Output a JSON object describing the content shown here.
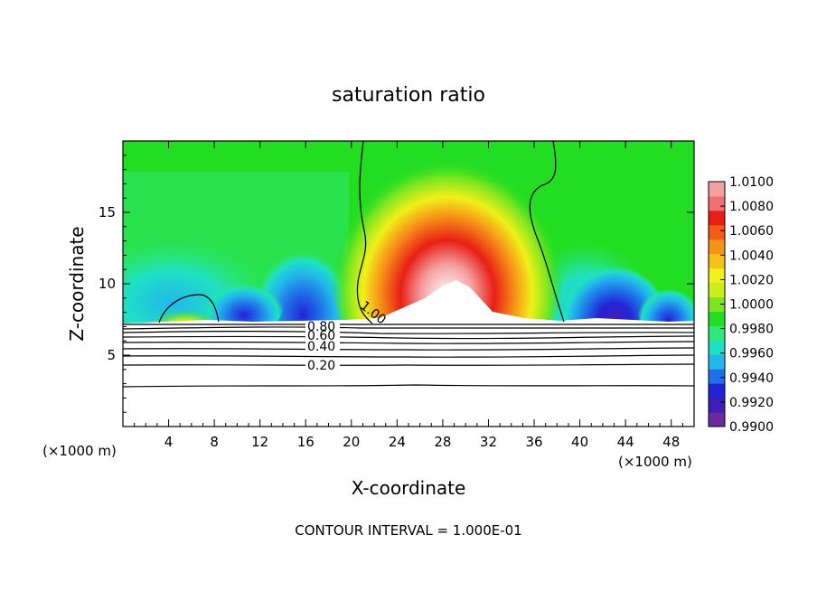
{
  "chart_data": {
    "type": "heatmap",
    "title": "saturation ratio",
    "xlabel": "X-coordinate",
    "ylabel": "Z-coordinate",
    "x_unit_left": "(×1000 m)",
    "x_unit_right": "(×1000 m)",
    "xlim": [
      0,
      50
    ],
    "ylim": [
      0,
      20
    ],
    "x_ticks": [
      "4",
      "8",
      "12",
      "16",
      "20",
      "24",
      "28",
      "32",
      "36",
      "40",
      "44",
      "48"
    ],
    "y_ticks": [
      "5",
      "10",
      "15"
    ],
    "colorbar": {
      "labels": [
        "0.9900",
        "0.9920",
        "0.9940",
        "0.9960",
        "0.9980",
        "1.0000",
        "1.0020",
        "1.0040",
        "1.0060",
        "1.0080",
        "1.0100"
      ],
      "min": 0.99,
      "max": 1.01,
      "colors": [
        "#6b2a9e",
        "#3d1fb8",
        "#2323d6",
        "#1f6fe8",
        "#22b8ea",
        "#1fe0c4",
        "#2ee87a",
        "#22dd22",
        "#7be61f",
        "#c8ee1e",
        "#f0f01a",
        "#f6c21a",
        "#f79418",
        "#f25c16",
        "#e81f16",
        "#f07070",
        "#f5a0a0"
      ]
    },
    "contour_labels": [
      "1.00",
      "0.80",
      "0.60",
      "0.40",
      "0.20"
    ],
    "contour_interval_text": "CONTOUR INTERVAL = 1.000E-01",
    "contour_lines_below_z": [
      7.2,
      6.9,
      6.6,
      6.2,
      5.8,
      5.4,
      5.0,
      4.5,
      3.0
    ],
    "features": {
      "supersaturated_core_center_x": 28,
      "supersaturated_core_center_z": 11,
      "left_cap_x": [
        3,
        9.5
      ],
      "unity_contour_x": [
        20.5,
        38.5
      ]
    }
  }
}
